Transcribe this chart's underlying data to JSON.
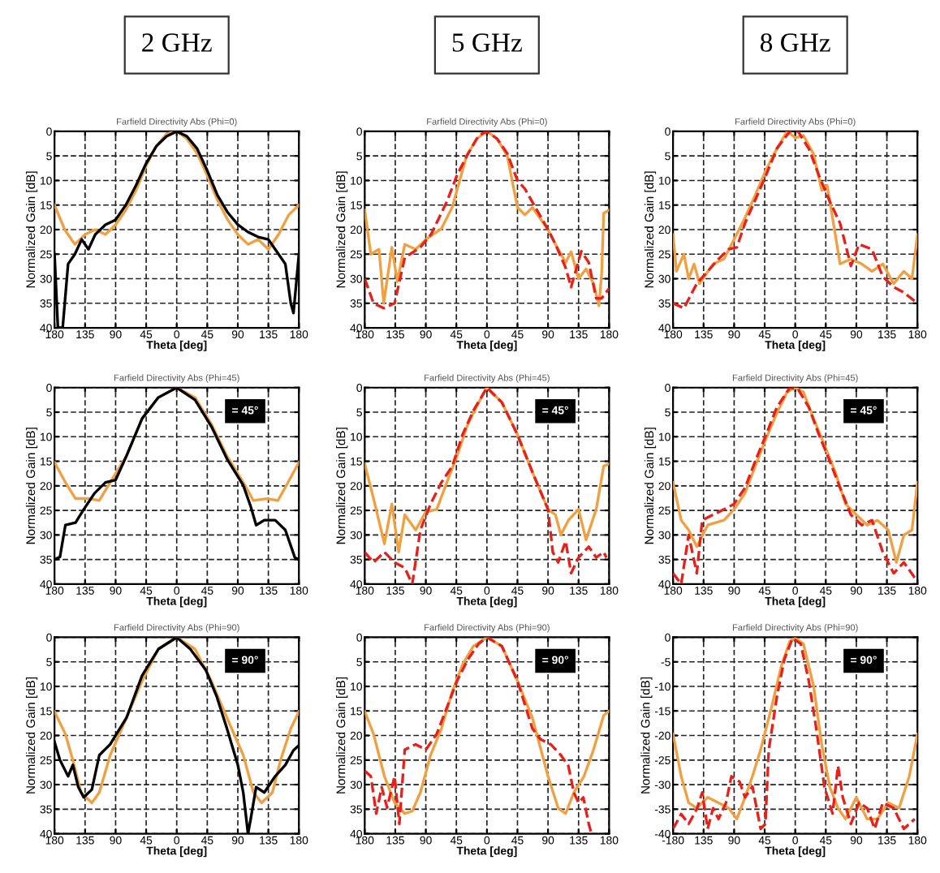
{
  "chart_data": [
    {
      "type": "line",
      "title": "Farfield Directivity Abs (Phi=0)",
      "subtitle": "2 GHz",
      "xlabel": "Theta [deg]",
      "ylabel": "Normalized Gain [dB]",
      "xlim": [
        -180,
        180
      ],
      "ylim": [
        40,
        0
      ],
      "xticks": [
        {
          "value": -180,
          "label": "180"
        },
        {
          "value": -135,
          "label": "135"
        },
        {
          "value": -90,
          "label": "90"
        },
        {
          "value": -45,
          "label": "45"
        },
        0,
        45,
        90,
        135,
        180
      ],
      "yticks": [
        0,
        5,
        10,
        15,
        20,
        25,
        30,
        35,
        40
      ],
      "grid": true,
      "series": [
        {
          "color": "#f0a040",
          "x": [
            -180,
            -165,
            -150,
            -135,
            -120,
            -105,
            -90,
            -75,
            -60,
            -45,
            -30,
            -15,
            0,
            15,
            30,
            45,
            60,
            75,
            90,
            105,
            120,
            135,
            150,
            165,
            180
          ],
          "values": [
            15,
            20,
            23,
            21,
            20,
            21,
            19,
            16,
            12,
            7,
            3,
            0.5,
            0,
            1.5,
            4.5,
            9,
            14,
            18,
            21,
            23,
            22,
            24,
            21,
            17,
            15
          ]
        },
        {
          "color": "#000000",
          "x": [
            -180,
            -175,
            -168,
            -160,
            -150,
            -140,
            -130,
            -120,
            -105,
            -90,
            -75,
            -60,
            -45,
            -30,
            -15,
            0,
            15,
            30,
            45,
            60,
            75,
            90,
            105,
            120,
            135,
            150,
            160,
            168,
            172,
            180
          ],
          "values": [
            25,
            40,
            40,
            27,
            25,
            22,
            24,
            21,
            19,
            18,
            15,
            11,
            6.5,
            3,
            1,
            0,
            1,
            3.5,
            8,
            13,
            16.5,
            19,
            20.5,
            21.5,
            22,
            25,
            27,
            35,
            37,
            25
          ]
        }
      ]
    },
    {
      "type": "line",
      "title": "Farfield Directivity Abs (Phi=0)",
      "subtitle": "5 GHz",
      "xlabel": "Theta [deg]",
      "ylabel": "Normalized Gain [dB]",
      "xlim": [
        -180,
        180
      ],
      "ylim": [
        40,
        0
      ],
      "xticks": [
        {
          "value": -180,
          "label": "180"
        },
        {
          "value": -135,
          "label": "135"
        },
        {
          "value": -90,
          "label": "90"
        },
        {
          "value": -45,
          "label": "45"
        },
        0,
        45,
        90,
        135,
        180
      ],
      "yticks": [
        0,
        5,
        10,
        15,
        20,
        25,
        30,
        35,
        40
      ],
      "grid": true,
      "series": [
        {
          "color": "#f0a040",
          "x": [
            -180,
            -171,
            -159,
            -152,
            -140,
            -132,
            -121,
            -105,
            -90,
            -67,
            -51,
            -30,
            -15,
            0,
            15,
            30,
            45,
            56,
            67,
            90,
            101,
            116,
            124,
            135,
            146,
            157,
            165,
            169,
            172,
            180
          ],
          "values": [
            16,
            25,
            24,
            35,
            23.6,
            30.6,
            23,
            24,
            22,
            19.8,
            15.4,
            5,
            1.5,
            0,
            1.5,
            5,
            15.5,
            17,
            15.5,
            20,
            23,
            26.7,
            24.5,
            30,
            28,
            31,
            35.5,
            29,
            16.7,
            16
          ]
        },
        {
          "color": "#e8201a",
          "line_style": "dashed",
          "x": [
            -180,
            -167,
            -152,
            -136,
            -121,
            -98,
            -82,
            -59,
            -44,
            -28,
            -12,
            0,
            15,
            30,
            45,
            56,
            67,
            90,
            101,
            116,
            124,
            139,
            150,
            161,
            169,
            180
          ],
          "values": [
            30,
            35,
            36,
            35,
            25.7,
            23.6,
            20.9,
            14.3,
            8.9,
            4.6,
            0.8,
            0,
            1.5,
            4.5,
            10,
            11.7,
            14.4,
            20,
            23,
            27.8,
            31.7,
            24.4,
            26.7,
            34,
            34,
            32
          ]
        }
      ]
    },
    {
      "type": "line",
      "title": "Farfield Directivity Abs (Phi=0)",
      "subtitle": "8 GHz",
      "xlabel": "Theta [deg]",
      "ylabel": "Normalized Gain [dB]",
      "xlim": [
        -180,
        180
      ],
      "ylim": [
        40,
        0
      ],
      "xticks": [
        {
          "value": -180,
          "label": "180"
        },
        {
          "value": -135,
          "label": "135"
        },
        {
          "value": -90,
          "label": "90"
        },
        {
          "value": -45,
          "label": "45"
        },
        0,
        45,
        90,
        135,
        180
      ],
      "yticks": [
        0,
        5,
        10,
        15,
        20,
        25,
        30,
        35,
        40
      ],
      "grid": true,
      "series": [
        {
          "color": "#f0a040",
          "x": [
            -180,
            -175,
            -164,
            -157,
            -149,
            -141,
            -121,
            -105,
            -90,
            -74,
            -59,
            -43,
            -27,
            -12,
            0,
            12,
            27,
            39,
            47,
            59,
            66,
            82,
            98,
            113,
            129,
            145,
            160,
            172,
            180
          ],
          "values": [
            21,
            28.5,
            25,
            30,
            27,
            31,
            27,
            26,
            22,
            17.6,
            13,
            7.8,
            3.5,
            0,
            1.3,
            0.8,
            4.6,
            12,
            11,
            21,
            27,
            26,
            27,
            28.5,
            27,
            31,
            28.5,
            30,
            21
          ]
        },
        {
          "color": "#e8201a",
          "line_style": "dashed",
          "x": [
            -180,
            -164,
            -145,
            -129,
            -113,
            -98,
            -86,
            -74,
            -59,
            -43,
            -27,
            -8,
            4,
            20,
            35,
            51,
            66,
            82,
            94,
            113,
            129,
            145,
            160,
            180
          ],
          "values": [
            35,
            36,
            31,
            28.5,
            26,
            24,
            23.6,
            18.7,
            14,
            8.9,
            3.5,
            0,
            0,
            3.5,
            9,
            14.3,
            18.7,
            27.4,
            23,
            24,
            29.6,
            31.7,
            32.8,
            35
          ]
        }
      ]
    },
    {
      "type": "line",
      "title": "Farfield Directivity Abs (Phi=45)",
      "xlabel": "Theta [deg]",
      "ylabel": "Normalized Gain [dB]",
      "annotations": [
        "= 45°"
      ],
      "xlim": [
        -180,
        180
      ],
      "ylim": [
        40,
        0
      ],
      "xticks": [
        {
          "value": -180,
          "label": "180"
        },
        {
          "value": -135,
          "label": "135"
        },
        {
          "value": -90,
          "label": "90"
        },
        {
          "value": -45,
          "label": "45"
        },
        0,
        45,
        90,
        135,
        180
      ],
      "yticks": [
        0,
        5,
        10,
        15,
        20,
        25,
        30,
        35,
        40
      ],
      "grid": true,
      "series": [
        {
          "color": "#f0a040",
          "x": [
            -180,
            -164,
            -149,
            -129,
            -114,
            -98,
            -74,
            -51,
            -27,
            0,
            27,
            51,
            74,
            98,
            113,
            133,
            149,
            164,
            180
          ],
          "values": [
            15.2,
            19.3,
            22.6,
            22.6,
            23,
            19.3,
            13.9,
            6.3,
            2,
            0,
            2,
            7.4,
            13.9,
            19.3,
            23,
            22.6,
            23,
            19.3,
            15.2
          ]
        },
        {
          "color": "#000000",
          "x": [
            -180,
            -172,
            -164,
            -149,
            -137,
            -121,
            -105,
            -90,
            -74,
            -51,
            -27,
            0,
            27,
            51,
            74,
            98,
            109,
            117,
            129,
            145,
            160,
            174,
            180
          ],
          "values": [
            35,
            34.5,
            28,
            27.5,
            24.8,
            21.5,
            19.3,
            18.8,
            13.9,
            6.3,
            2,
            0,
            2.5,
            7.9,
            14.5,
            19.9,
            24.2,
            28,
            27,
            27,
            29,
            34.6,
            35
          ]
        }
      ]
    },
    {
      "type": "line",
      "title": "Farfield Directivity Abs (Phi=45)",
      "xlabel": "Theta [deg]",
      "ylabel": "Normalized Gain [dB]",
      "annotations": [
        "= 45°"
      ],
      "xlim": [
        -180,
        180
      ],
      "ylim": [
        40,
        0
      ],
      "xticks": [
        {
          "value": -180,
          "label": "180"
        },
        {
          "value": -135,
          "label": "135"
        },
        {
          "value": -90,
          "label": "90"
        },
        {
          "value": -45,
          "label": "45"
        },
        0,
        45,
        90,
        135,
        180
      ],
      "yticks": [
        0,
        5,
        10,
        15,
        20,
        25,
        30,
        35,
        40
      ],
      "grid": true,
      "series": [
        {
          "color": "#f0a040",
          "x": [
            -180,
            -167,
            -151,
            -140,
            -130,
            -121,
            -105,
            -90,
            -74,
            -59,
            -44,
            -28,
            -12,
            0,
            22,
            45,
            67,
            90,
            101,
            109,
            120,
            135,
            146,
            161,
            172,
            180
          ],
          "values": [
            15.5,
            22.6,
            31.8,
            23.7,
            33.5,
            25.9,
            29,
            25.3,
            24.8,
            19.3,
            13.9,
            7.4,
            3,
            0,
            3,
            9.6,
            17.2,
            24.8,
            25.9,
            30,
            27,
            24.8,
            31,
            24.8,
            16,
            15.5
          ]
        },
        {
          "color": "#e8201a",
          "line_style": "dashed",
          "x": [
            -180,
            -167,
            -151,
            -136,
            -121,
            -110,
            -98,
            -83,
            -67,
            -51,
            -36,
            -20,
            0,
            22,
            45,
            67,
            90,
            97,
            105,
            116,
            124,
            135,
            150,
            161,
            172,
            176
          ],
          "values": [
            33.5,
            35.6,
            33.5,
            35.6,
            36.7,
            40,
            29,
            23.7,
            19.3,
            16,
            9.6,
            4.7,
            0,
            3,
            9.6,
            17.2,
            24.8,
            33.5,
            35.6,
            31.3,
            37.8,
            34.6,
            32.4,
            34.6,
            33.5,
            34.6
          ]
        }
      ]
    },
    {
      "type": "line",
      "title": "Farfield Directivity Abs (Phi=45)",
      "xlabel": "Theta [deg]",
      "ylabel": "Normalized Gain [dB]",
      "annotations": [
        "= 45°"
      ],
      "xlim": [
        -180,
        180
      ],
      "ylim": [
        40,
        0
      ],
      "xticks": [
        {
          "value": -180,
          "label": "180"
        },
        {
          "value": -135,
          "label": "135"
        },
        {
          "value": -90,
          "label": "90"
        },
        {
          "value": -45,
          "label": "45"
        },
        0,
        45,
        90,
        135,
        180
      ],
      "yticks": [
        0,
        5,
        10,
        15,
        20,
        25,
        30,
        35,
        40
      ],
      "grid": true,
      "series": [
        {
          "color": "#f0a040",
          "x": [
            -180,
            -168,
            -157,
            -145,
            -129,
            -105,
            -90,
            -74,
            -59,
            -43,
            -27,
            -12,
            0,
            12,
            27,
            43,
            59,
            74,
            90,
            106,
            121,
            137,
            149,
            160,
            172,
            180
          ],
          "values": [
            19.3,
            27,
            29,
            32.4,
            28,
            27,
            24.8,
            21.5,
            16,
            10.4,
            5.2,
            0.9,
            0,
            0.9,
            6.3,
            11.7,
            17.2,
            23.7,
            25.9,
            28,
            27,
            29,
            35.6,
            30,
            29,
            19.3
          ]
        },
        {
          "color": "#e8201a",
          "line_style": "dashed",
          "x": [
            -180,
            -168,
            -157,
            -145,
            -137,
            -121,
            -105,
            -90,
            -74,
            -59,
            -43,
            -27,
            -8,
            4,
            20,
            35,
            51,
            66,
            82,
            98,
            113,
            129,
            145,
            160,
            176
          ],
          "values": [
            37.8,
            40,
            30,
            37.8,
            27,
            25.9,
            24.8,
            23.7,
            20.4,
            15,
            9.6,
            4,
            0,
            0.3,
            4,
            9.6,
            15,
            20.4,
            25.9,
            28,
            27,
            33.5,
            37.8,
            35.6,
            38.7
          ]
        }
      ]
    },
    {
      "type": "line",
      "title": "Farfield Directivity Abs (Phi=90)",
      "xlabel": "Theta [deg]",
      "ylabel": "Normalized Gain [dB]",
      "annotations": [
        "= 90°"
      ],
      "xlim": [
        -180,
        180
      ],
      "ylim": [
        40,
        0
      ],
      "xticks": [
        {
          "value": -180,
          "label": "180"
        },
        {
          "value": -135,
          "label": "135"
        },
        {
          "value": -90,
          "label": "90"
        },
        {
          "value": -45,
          "label": "45"
        },
        0,
        45,
        90,
        135,
        180
      ],
      "yticks": [
        0,
        5,
        10,
        15,
        20,
        25,
        30,
        35,
        40
      ],
      "grid": true,
      "series": [
        {
          "color": "#f0a040",
          "x": [
            -180,
            -164,
            -153,
            -141,
            -125,
            -114,
            -98,
            -74,
            -51,
            -27,
            0,
            27,
            51,
            74,
            98,
            113,
            125,
            141,
            153,
            168,
            180
          ],
          "values": [
            15.1,
            19.7,
            25,
            31.6,
            33.7,
            31.6,
            24,
            16.4,
            8.9,
            2.4,
            0,
            2.4,
            8.9,
            16.4,
            24,
            31.6,
            33.7,
            31.6,
            25,
            18.6,
            15.1
          ]
        },
        {
          "color": "#000000",
          "x": [
            -180,
            -172,
            -160,
            -153,
            -145,
            -137,
            -125,
            -114,
            -98,
            -74,
            -51,
            -27,
            0,
            20,
            43,
            59,
            74,
            90,
            98,
            105,
            109,
            117,
            129,
            145,
            160,
            172,
            180
          ],
          "values": [
            21.3,
            25,
            28.3,
            26,
            30.5,
            32.6,
            31,
            24,
            21.8,
            16.4,
            7.8,
            2.4,
            0,
            2.4,
            6.7,
            12.1,
            18.6,
            26,
            31.6,
            40,
            37,
            30.5,
            31.6,
            28.3,
            26,
            23,
            22
          ]
        }
      ]
    },
    {
      "type": "line",
      "title": "Farfield Directivity Abs (Phi=90)",
      "xlabel": "Theta [deg]",
      "ylabel": "Normalized Gain [dB]",
      "annotations": [
        "= 90°"
      ],
      "xlim": [
        -180,
        180
      ],
      "ylim": [
        40,
        0
      ],
      "xticks": [
        {
          "value": -180,
          "label": "180"
        },
        {
          "value": -135,
          "label": "135"
        },
        {
          "value": -90,
          "label": "90"
        },
        {
          "value": -45,
          "label": "45"
        },
        0,
        45,
        90,
        135,
        180
      ],
      "yticks": [
        0,
        5,
        10,
        15,
        20,
        25,
        30,
        35,
        40
      ],
      "grid": true,
      "series": [
        {
          "color": "#f0a040",
          "x": [
            -180,
            -167,
            -151,
            -136,
            -121,
            -110,
            -98,
            -83,
            -67,
            -51,
            -36,
            -20,
            0,
            22,
            45,
            67,
            90,
            105,
            116,
            128,
            143,
            157,
            172,
            180
          ],
          "values": [
            15.1,
            19.7,
            28.3,
            33.7,
            35.9,
            35.4,
            31.6,
            24,
            18.6,
            11,
            5.6,
            1.8,
            0,
            1.8,
            8.9,
            16.4,
            28.3,
            34.8,
            35.9,
            31.6,
            28.3,
            22.9,
            15.9,
            15
          ]
        },
        {
          "color": "#e8201a",
          "line_style": "dashed",
          "x": [
            -180,
            -171,
            -163,
            -155,
            -147,
            -136,
            -129,
            -121,
            -105,
            -90,
            -74,
            -59,
            -44,
            -28,
            -12,
            0,
            22,
            45,
            67,
            79,
            94,
            109,
            120,
            128,
            135,
            142,
            150,
            154
          ],
          "values": [
            27.2,
            28.3,
            35.9,
            30.5,
            34.7,
            28.3,
            38,
            22.9,
            21.8,
            22.9,
            19.7,
            14.3,
            8.9,
            4.5,
            1.3,
            0,
            1.8,
            8.9,
            18.6,
            20.8,
            21.8,
            24,
            26.2,
            31.6,
            33.7,
            32.6,
            38,
            40
          ]
        }
      ]
    },
    {
      "type": "line",
      "title": "Farfield Directivity Abs (Phi=90)",
      "xlabel": "Theta [deg]",
      "ylabel": "Normalized Gain [dB]",
      "annotations": [
        "= 90°"
      ],
      "xlim": [
        -180,
        180
      ],
      "ylim": [
        -40,
        0
      ],
      "xticks": [
        -180,
        {
          "value": -135,
          "label": "135"
        },
        {
          "value": -90,
          "label": "90"
        },
        {
          "value": -45,
          "label": "45"
        },
        0,
        45,
        90,
        135,
        180
      ],
      "yticks": [
        0,
        -5,
        -10,
        -15,
        -20,
        -25,
        -30,
        -35,
        -40
      ],
      "grid": true,
      "series": [
        {
          "color": "#f0a040",
          "x": [
            -180,
            -168,
            -157,
            -145,
            -129,
            -113,
            -98,
            -86,
            -74,
            -63,
            -51,
            -35,
            -20,
            -8,
            0,
            12,
            27,
            39,
            51,
            63,
            74,
            90,
            106,
            121,
            137,
            153,
            168,
            180
          ],
          "values": [
            -19.7,
            -28.3,
            -33.7,
            -34.8,
            -32.6,
            -33.7,
            -34.8,
            -37,
            -32.6,
            -28.3,
            -22.9,
            -14.3,
            -5.6,
            -0.8,
            -0.2,
            -1.3,
            -9.9,
            -21.8,
            -30.5,
            -34.8,
            -37,
            -32.6,
            -37,
            -37,
            -33.7,
            -34.8,
            -28.3,
            -19.7
          ]
        },
        {
          "color": "#e8201a",
          "line_style": "dashed",
          "x": [
            -180,
            -168,
            -157,
            -145,
            -137,
            -129,
            -121,
            -113,
            -102,
            -94,
            -82,
            -74,
            -63,
            -51,
            -44,
            -39,
            -27,
            -16,
            -4,
            8,
            20,
            31,
            43,
            55,
            63,
            70,
            82,
            94,
            106,
            117,
            129,
            145,
            160,
            176
          ],
          "values": [
            -39,
            -36,
            -38,
            -35,
            -31.6,
            -39,
            -34.8,
            -37,
            -33.7,
            -28.3,
            -29.4,
            -32.6,
            -30.4,
            -39,
            -38,
            -22.9,
            -12.1,
            -4.5,
            -0.2,
            -1.3,
            -8.9,
            -18.6,
            -30.5,
            -35.9,
            -26.2,
            -32.6,
            -38,
            -33.7,
            -34.8,
            -39,
            -33.7,
            -34.8,
            -39,
            -37
          ]
        }
      ]
    }
  ]
}
